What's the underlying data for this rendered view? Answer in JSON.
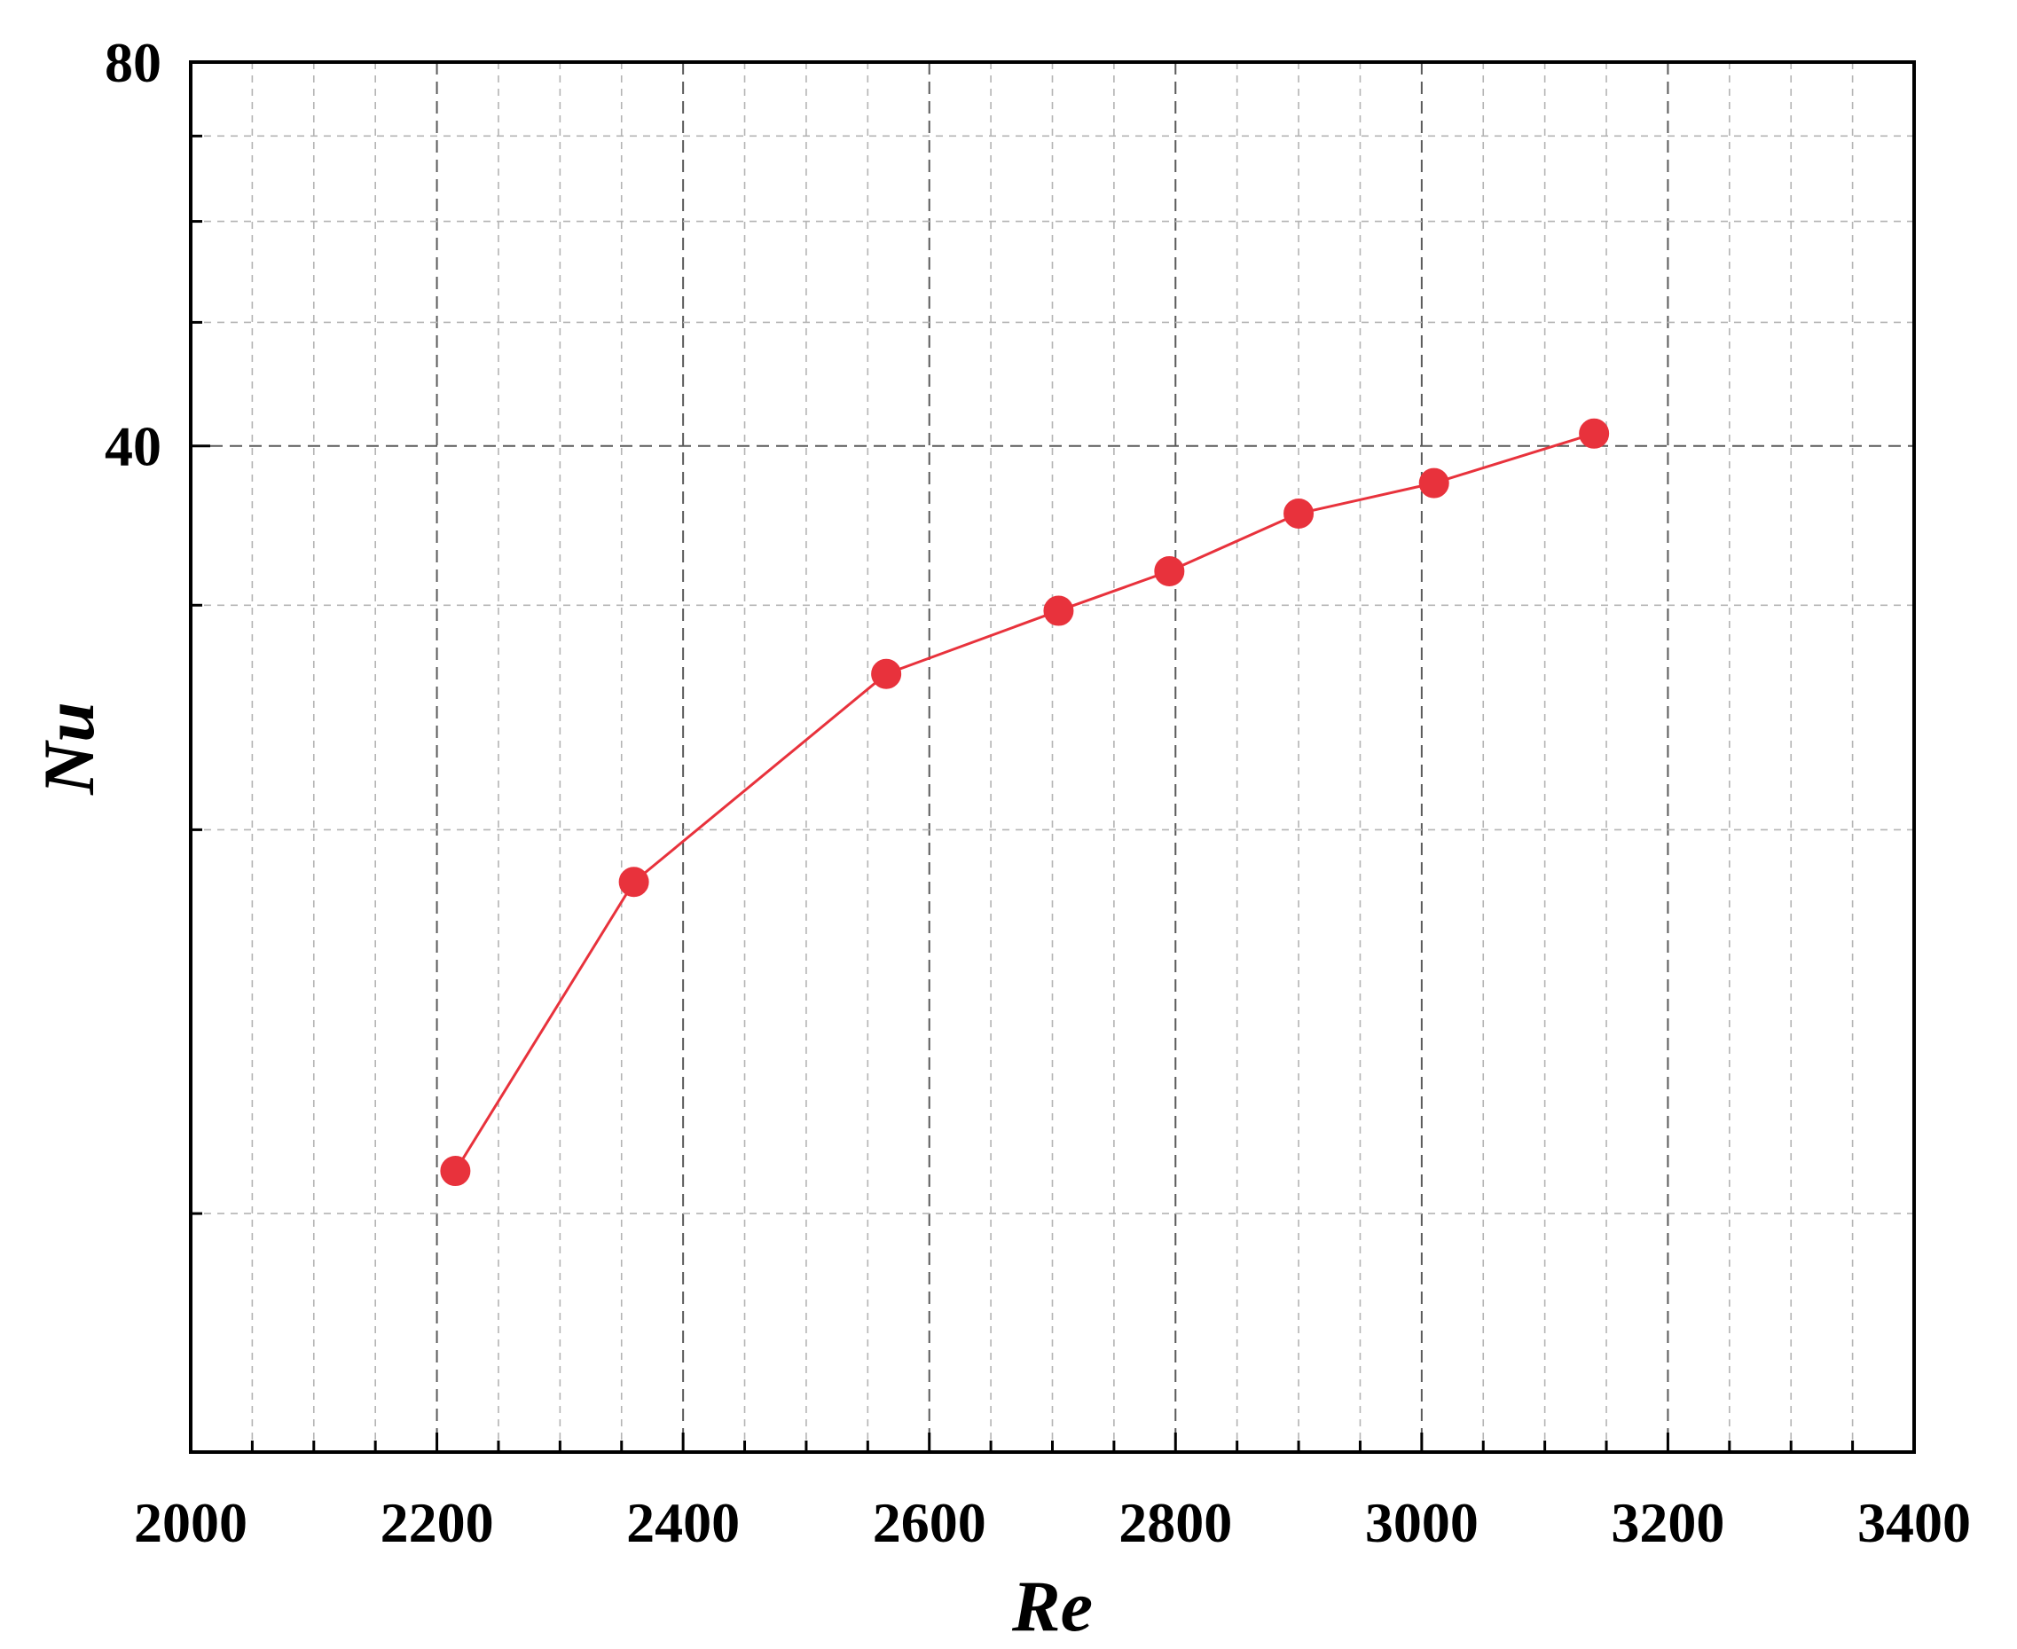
{
  "chart_data": {
    "type": "line",
    "title": "",
    "xlabel": "Re",
    "ylabel": "Nu",
    "xlim": [
      2000,
      3400
    ],
    "ylim": [
      0,
      80
    ],
    "y_scale": "log",
    "x_ticks": [
      2000,
      2200,
      2400,
      2600,
      2800,
      3000,
      3200,
      3400
    ],
    "y_ticks": [
      40,
      80
    ],
    "grid": true,
    "legend": "none",
    "series": [
      {
        "color": "#e8323c",
        "x": [
          2215,
          2360,
          2565,
          2705,
          2795,
          2900,
          3010,
          3140
        ],
        "y": [
          10.8,
          18.2,
          26.5,
          29.7,
          31.9,
          35.4,
          37.4,
          40.9
        ]
      }
    ]
  }
}
